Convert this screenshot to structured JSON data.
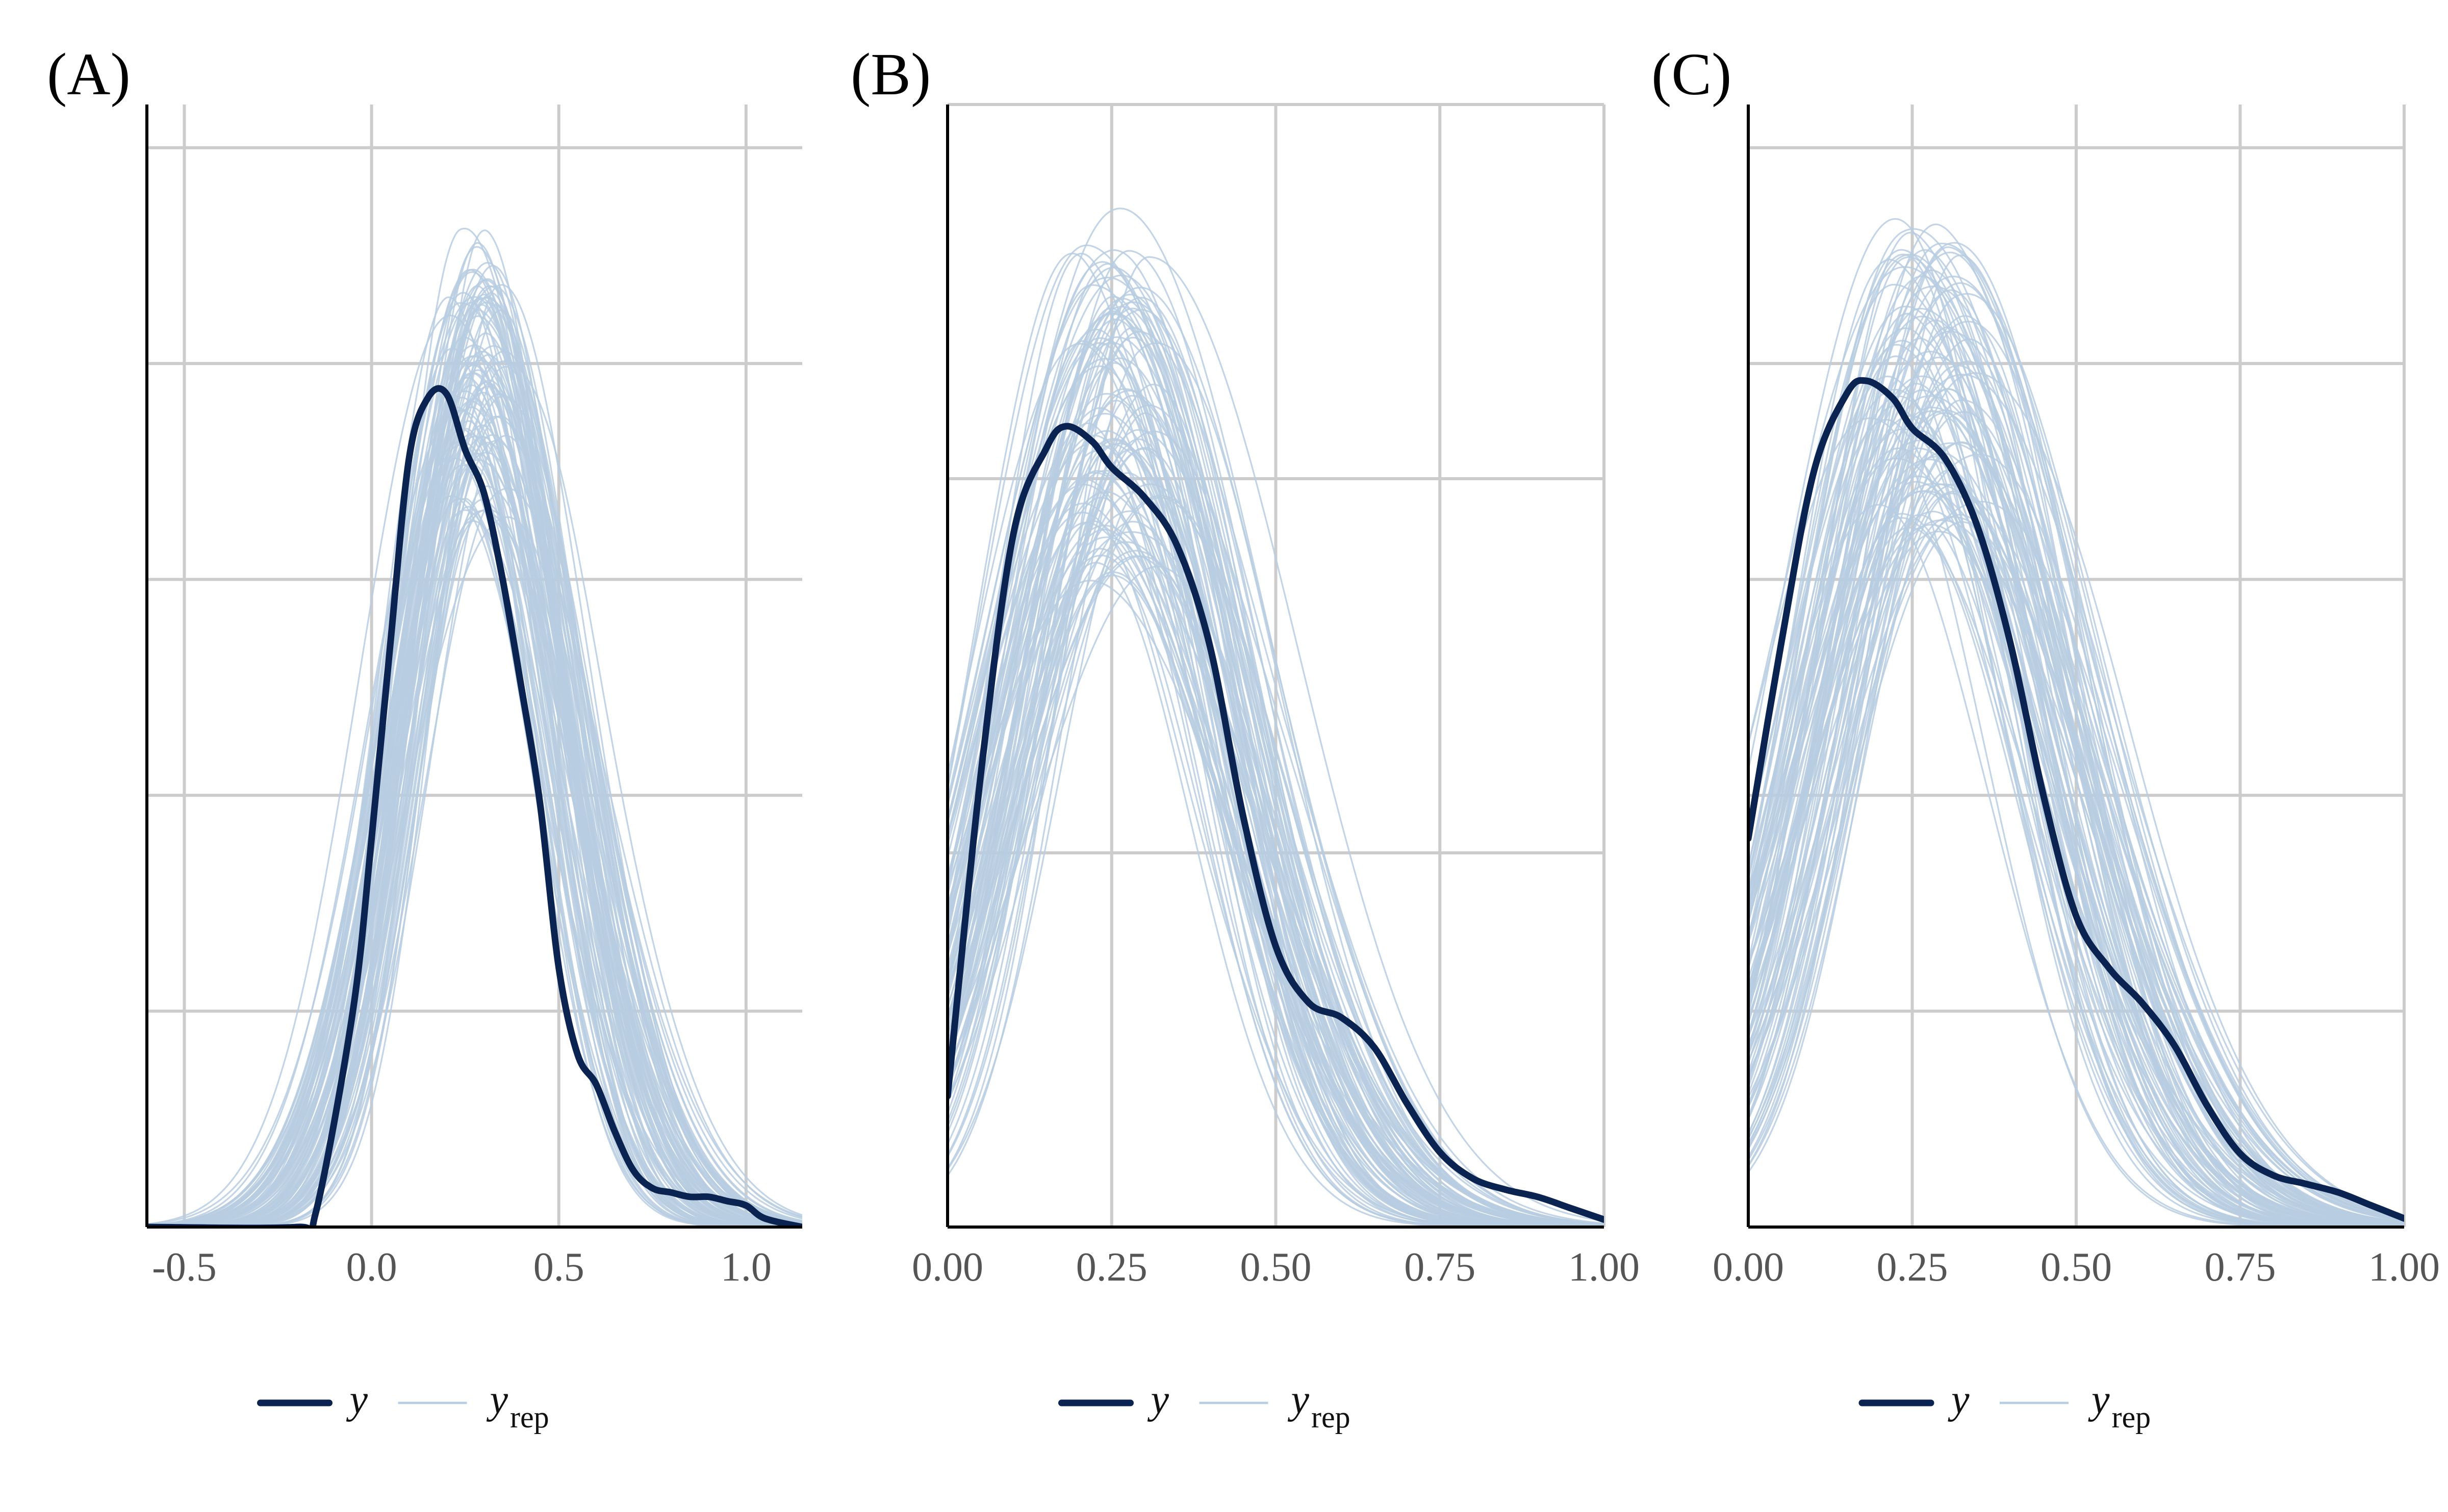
{
  "colors": {
    "y": "#0b2350",
    "yrep": "#b7cde0",
    "grid": "#cccccc",
    "axis": "#000000",
    "tick_text": "#555555"
  },
  "chart_data": [
    {
      "type": "line",
      "panel_label": "(A)",
      "xlim": [
        -0.6,
        1.15
      ],
      "xticks": [
        -0.5,
        0.0,
        0.5,
        1.0
      ],
      "xtick_labels": [
        "-0.5",
        "0.0",
        "0.5",
        "1.0"
      ],
      "ylim": [
        0,
        2.6
      ],
      "yticks": [
        0.5,
        1.0,
        1.5,
        2.0,
        2.5
      ],
      "grid": true,
      "legend_position": "bottom",
      "legend": [
        {
          "name": "y",
          "role": "observed"
        },
        {
          "name": "yrep",
          "role": "replicated"
        }
      ],
      "series_y": {
        "x": [
          -0.6,
          -0.2,
          -0.15,
          -0.05,
          0.0,
          0.05,
          0.1,
          0.15,
          0.2,
          0.25,
          0.3,
          0.35,
          0.4,
          0.45,
          0.5,
          0.55,
          0.6,
          0.65,
          0.7,
          0.75,
          0.8,
          0.85,
          0.9,
          0.95,
          1.0,
          1.05,
          1.15
        ],
        "values": [
          0.0,
          0.0,
          0.03,
          0.5,
          0.9,
          1.35,
          1.78,
          1.92,
          1.93,
          1.8,
          1.7,
          1.5,
          1.25,
          0.98,
          0.6,
          0.4,
          0.33,
          0.22,
          0.13,
          0.09,
          0.08,
          0.07,
          0.07,
          0.06,
          0.05,
          0.02,
          0.0
        ]
      },
      "yrep": {
        "count": 100,
        "peak_x": 0.28,
        "peak_y": 1.95,
        "spread": 0.2,
        "peak_jitter": 0.06,
        "height_jitter": 0.16,
        "seed": 11
      }
    },
    {
      "type": "line",
      "panel_label": "(B)",
      "xlim": [
        0.0,
        1.0
      ],
      "xticks": [
        0.0,
        0.25,
        0.5,
        0.75,
        1.0
      ],
      "xtick_labels": [
        "0.00",
        "0.25",
        "0.50",
        "0.75",
        "1.00"
      ],
      "ylim": [
        0,
        3.0
      ],
      "yticks": [
        1.0,
        2.0,
        3.0
      ],
      "grid": true,
      "legend_position": "bottom",
      "legend": [
        {
          "name": "y",
          "role": "observed"
        },
        {
          "name": "yrep",
          "role": "replicated"
        }
      ],
      "series_y": {
        "x": [
          0.0,
          0.05,
          0.1,
          0.15,
          0.18,
          0.22,
          0.25,
          0.3,
          0.35,
          0.4,
          0.45,
          0.5,
          0.55,
          0.6,
          0.65,
          0.7,
          0.75,
          0.8,
          0.85,
          0.9,
          0.95,
          1.0
        ],
        "values": [
          0.35,
          1.2,
          1.85,
          2.08,
          2.14,
          2.1,
          2.03,
          1.95,
          1.82,
          1.55,
          1.1,
          0.75,
          0.6,
          0.56,
          0.48,
          0.33,
          0.2,
          0.13,
          0.1,
          0.08,
          0.05,
          0.02
        ]
      },
      "yrep": {
        "count": 100,
        "peak_x": 0.26,
        "peak_y": 2.2,
        "spread": 0.16,
        "peak_jitter": 0.05,
        "height_jitter": 0.22,
        "seed": 23
      }
    },
    {
      "type": "line",
      "panel_label": "(C)",
      "xlim": [
        0.0,
        1.0
      ],
      "xticks": [
        0.0,
        0.25,
        0.5,
        0.75,
        1.0
      ],
      "xtick_labels": [
        "0.00",
        "0.25",
        "0.50",
        "0.75",
        "1.00"
      ],
      "ylim": [
        0,
        2.6
      ],
      "yticks": [
        0.5,
        1.0,
        1.5,
        2.0,
        2.5
      ],
      "grid": true,
      "legend_position": "bottom",
      "legend": [
        {
          "name": "y",
          "role": "observed"
        },
        {
          "name": "yrep",
          "role": "replicated"
        }
      ],
      "series_y": {
        "x": [
          0.0,
          0.05,
          0.1,
          0.15,
          0.18,
          0.22,
          0.25,
          0.3,
          0.35,
          0.4,
          0.45,
          0.5,
          0.55,
          0.6,
          0.65,
          0.7,
          0.75,
          0.8,
          0.85,
          0.9,
          0.95,
          1.0
        ],
        "values": [
          0.9,
          1.35,
          1.75,
          1.93,
          1.96,
          1.92,
          1.85,
          1.78,
          1.62,
          1.35,
          1.0,
          0.72,
          0.6,
          0.52,
          0.42,
          0.28,
          0.17,
          0.12,
          0.1,
          0.08,
          0.05,
          0.02
        ]
      },
      "yrep": {
        "count": 100,
        "peak_x": 0.27,
        "peak_y": 1.95,
        "spread": 0.17,
        "peak_jitter": 0.06,
        "height_jitter": 0.18,
        "seed": 37
      }
    }
  ]
}
